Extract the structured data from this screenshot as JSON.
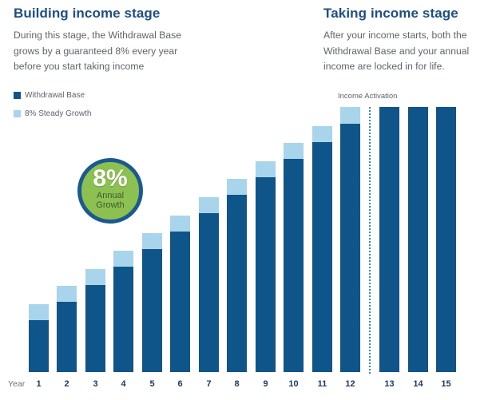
{
  "left_section": {
    "heading": "Building income stage",
    "description_lines": [
      "During this stage, the Withdrawal Base",
      "grows by a guaranteed 8% every year",
      "before you start taking income"
    ]
  },
  "right_section": {
    "heading": "Taking income stage",
    "description_lines": [
      "After your income starts, both the",
      "Withdrawal Base and your annual",
      "income are locked in for life."
    ]
  },
  "legend": [
    {
      "label": "Withdrawal Base",
      "color": "#10558a"
    },
    {
      "label": "8% Steady Growth",
      "color": "#a8d4ec"
    }
  ],
  "badge": {
    "value": "8%",
    "line1": "Annual",
    "line2": "Growth",
    "fill": "#8cc152",
    "ring": "#1b5a8e"
  },
  "annotation": {
    "label": "Income Activation",
    "after_year": 12
  },
  "axis": {
    "year_label": "Year"
  },
  "colors": {
    "base": "#10558a",
    "growth": "#a8d4ec",
    "heading": "#1b4f86",
    "divider": "#2b8cc4"
  },
  "chart_data": {
    "type": "bar",
    "stacked": true,
    "title": "",
    "xlabel": "Year",
    "ylabel": "",
    "categories": [
      "1",
      "2",
      "3",
      "4",
      "5",
      "6",
      "7",
      "8",
      "9",
      "10",
      "11",
      "12",
      "13",
      "14",
      "15"
    ],
    "series": [
      {
        "name": "Withdrawal Base",
        "values": [
          65,
          88,
          109,
          132,
          154,
          176,
          199,
          222,
          244,
          267,
          288,
          311,
          332,
          332,
          332
        ]
      },
      {
        "name": "8% Steady Growth",
        "values": [
          20,
          20,
          20,
          20,
          20,
          20,
          20,
          20,
          20,
          20,
          20,
          21,
          0,
          0,
          0
        ]
      }
    ],
    "units_note": "values are relative bar heights in pixels (no numeric y-axis shown)",
    "annotations": [
      {
        "text": "Income Activation",
        "x_between": [
          "12",
          "13"
        ],
        "style": "dotted vertical line"
      }
    ],
    "grid": false,
    "legend_position": "top-left"
  }
}
